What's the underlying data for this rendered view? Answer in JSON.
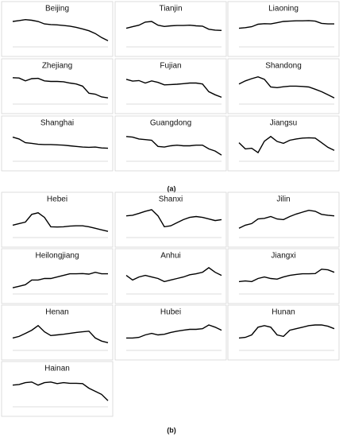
{
  "panel_labels": [
    "(a)",
    "(b)"
  ],
  "chart_data": [
    {
      "type": "line",
      "title": "Beijing",
      "color": "#000000",
      "ylim": [
        0,
        10
      ],
      "values": [
        8.2,
        8.5,
        8.8,
        8.6,
        8.2,
        7.4,
        7.2,
        7.1,
        6.9,
        6.7,
        6.3,
        5.8,
        5.2,
        4.3,
        3,
        2
      ]
    },
    {
      "type": "line",
      "title": "Tianjin",
      "color": "#000000",
      "ylim": [
        0,
        10
      ],
      "values": [
        6,
        6.5,
        7,
        8,
        8.2,
        7,
        6.6,
        6.8,
        6.9,
        6.9,
        7,
        6.8,
        6.7,
        5.7,
        5.4,
        5.3
      ]
    },
    {
      "type": "line",
      "title": "Liaoning",
      "color": "#000000",
      "ylim": [
        0,
        10
      ],
      "values": [
        6,
        6.2,
        6.5,
        7.3,
        7.5,
        7.4,
        7.8,
        8.2,
        8.3,
        8.4,
        8.4,
        8.5,
        8.3,
        7.6,
        7.4,
        7.4
      ]
    },
    {
      "type": "line",
      "title": "Zhejiang",
      "color": "#000000",
      "ylim": [
        0,
        10
      ],
      "values": [
        8.5,
        8.4,
        7.5,
        8.2,
        8.3,
        7.5,
        7.3,
        7.3,
        7.2,
        6.8,
        6.5,
        5.8,
        3.5,
        3.2,
        2.3,
        2
      ]
    },
    {
      "type": "line",
      "title": "Fujian",
      "color": "#000000",
      "ylim": [
        0,
        10
      ],
      "values": [
        8,
        7.4,
        7.6,
        6.8,
        7.5,
        7,
        6.2,
        6.3,
        6.4,
        6.6,
        6.8,
        6.8,
        6.5,
        4,
        3,
        2.2
      ]
    },
    {
      "type": "line",
      "title": "Shandong",
      "color": "#000000",
      "ylim": [
        0,
        10
      ],
      "values": [
        6.5,
        7.5,
        8.2,
        8.8,
        8,
        5.5,
        5.3,
        5.6,
        5.8,
        5.8,
        5.7,
        5.5,
        4.8,
        4,
        3,
        2
      ]
    },
    {
      "type": "line",
      "title": "Shanghai",
      "color": "#000000",
      "ylim": [
        0,
        10
      ],
      "values": [
        7.8,
        7.2,
        6,
        5.8,
        5.5,
        5.4,
        5.4,
        5.3,
        5.2,
        5,
        4.8,
        4.6,
        4.5,
        4.6,
        4.3,
        4.2
      ]
    },
    {
      "type": "line",
      "title": "Guangdong",
      "color": "#000000",
      "ylim": [
        0,
        10
      ],
      "values": [
        8,
        7.8,
        7.2,
        7,
        6.8,
        4.8,
        4.6,
        5,
        5.2,
        5,
        5,
        5.2,
        5.2,
        4,
        3.3,
        2
      ]
    },
    {
      "type": "line",
      "title": "Jiangsu",
      "color": "#000000",
      "ylim": [
        0,
        10
      ],
      "values": [
        6,
        4,
        4.2,
        2.8,
        6.5,
        8,
        6.4,
        5.8,
        6.8,
        7.2,
        7.5,
        7.6,
        7.5,
        6,
        4.5,
        3.5
      ]
    },
    {
      "type": "line",
      "title": "Hebei",
      "color": "#000000",
      "ylim": [
        0,
        10
      ],
      "values": [
        4,
        4.5,
        5,
        7.5,
        8,
        6.5,
        3.5,
        3.4,
        3.5,
        3.7,
        3.8,
        3.8,
        3.5,
        3,
        2.5,
        2
      ]
    },
    {
      "type": "line",
      "title": "Shanxi",
      "color": "#000000",
      "ylim": [
        0,
        10
      ],
      "values": [
        7,
        7.2,
        7.8,
        8.5,
        9,
        7,
        3.5,
        3.8,
        4.8,
        5.8,
        6.5,
        6.8,
        6.5,
        6,
        5.5,
        5.8
      ]
    },
    {
      "type": "line",
      "title": "Jilin",
      "color": "#000000",
      "ylim": [
        0,
        10
      ],
      "values": [
        3,
        4,
        4.5,
        6,
        6.2,
        6.8,
        6,
        5.8,
        6.8,
        7.6,
        8.2,
        8.8,
        8.5,
        7.5,
        7.2,
        7
      ]
    },
    {
      "type": "line",
      "title": "Heilongjiang",
      "color": "#000000",
      "ylim": [
        0,
        10
      ],
      "values": [
        2,
        2.5,
        3,
        4.5,
        4.5,
        5,
        5,
        5.5,
        6,
        6.5,
        6.5,
        6.6,
        6.4,
        7,
        6.5,
        6.5
      ]
    },
    {
      "type": "line",
      "title": "Anhui",
      "color": "#000000",
      "ylim": [
        0,
        10
      ],
      "values": [
        6,
        4.5,
        5.5,
        6,
        5.5,
        5,
        4,
        4.5,
        5,
        5.5,
        6.2,
        6.5,
        7,
        8.5,
        7,
        6
      ]
    },
    {
      "type": "line",
      "title": "Jiangxi",
      "color": "#000000",
      "ylim": [
        0,
        10
      ],
      "values": [
        4,
        4.2,
        4,
        5,
        5.5,
        5,
        4.8,
        5.5,
        6,
        6.3,
        6.5,
        6.5,
        6.6,
        8,
        7.8,
        7
      ]
    },
    {
      "type": "line",
      "title": "Henan",
      "color": "#000000",
      "ylim": [
        0,
        10
      ],
      "values": [
        4,
        4.5,
        5.5,
        6.5,
        8,
        6,
        4.8,
        5,
        5.2,
        5.5,
        5.8,
        6,
        6.2,
        4,
        3,
        2.5
      ]
    },
    {
      "type": "line",
      "title": "Hubei",
      "color": "#000000",
      "ylim": [
        0,
        10
      ],
      "values": [
        4,
        4,
        4.2,
        5,
        5.5,
        5,
        5.2,
        5.8,
        6.2,
        6.5,
        6.8,
        6.8,
        7,
        8.2,
        7.5,
        6.5
      ]
    },
    {
      "type": "line",
      "title": "Hunan",
      "color": "#000000",
      "ylim": [
        0,
        10
      ],
      "values": [
        4,
        4.2,
        5,
        7.5,
        8,
        7.5,
        5,
        4.5,
        6.5,
        7,
        7.5,
        8,
        8.2,
        8.2,
        7.8,
        7
      ]
    },
    {
      "type": "line",
      "title": "Hainan",
      "color": "#000000",
      "ylim": [
        0,
        10
      ],
      "values": [
        7,
        7.2,
        7.8,
        8,
        7,
        7.8,
        8,
        7.5,
        7.8,
        7.6,
        7.6,
        7.5,
        6,
        5,
        4,
        2
      ]
    }
  ]
}
